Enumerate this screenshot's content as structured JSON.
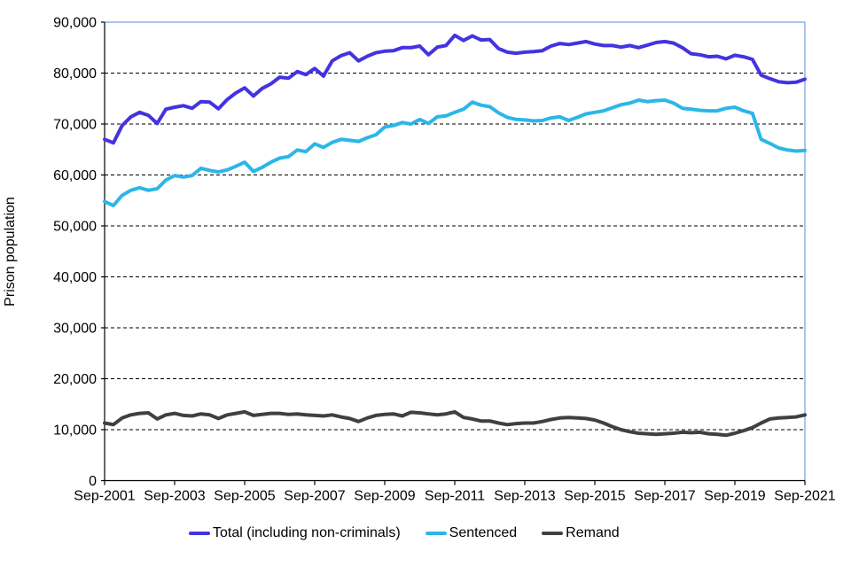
{
  "chart_data": {
    "type": "line",
    "title": "",
    "ylabel": "Prison population",
    "xlabel": "",
    "ylim": [
      0,
      90000
    ],
    "y_ticks": [
      0,
      10000,
      20000,
      30000,
      40000,
      50000,
      60000,
      70000,
      80000,
      90000
    ],
    "y_tick_labels": [
      "0",
      "10,000",
      "20,000",
      "30,000",
      "40,000",
      "50,000",
      "60,000",
      "70,000",
      "80,000",
      "90,000"
    ],
    "x_tick_labels": [
      "Sep-2001",
      "Sep-2003",
      "Sep-2005",
      "Sep-2007",
      "Sep-2009",
      "Sep-2011",
      "Sep-2013",
      "Sep-2015",
      "Sep-2017",
      "Sep-2019",
      "Sep-2021"
    ],
    "x_tick_indices": [
      0,
      8,
      16,
      24,
      32,
      40,
      48,
      56,
      64,
      72,
      80
    ],
    "x_start": "Sep-2001",
    "x_end": "Sep-2021",
    "x_frequency": "quarterly",
    "grid": "horizontal dashed black",
    "legend_position": "bottom",
    "plot_border_color": "#8DB4E2",
    "axis_color": "#000000",
    "series": [
      {
        "id": "total",
        "name": "Total (including non-criminals)",
        "color": "#4433E0",
        "values": [
          67000,
          66300,
          69700,
          71400,
          72300,
          71700,
          70100,
          72900,
          73300,
          73600,
          73100,
          74400,
          74300,
          73000,
          74800,
          76100,
          77100,
          75500,
          77000,
          77900,
          79200,
          79000,
          80300,
          79700,
          80900,
          79400,
          82400,
          83400,
          84000,
          82400,
          83300,
          84000,
          84300,
          84400,
          85000,
          85000,
          85300,
          83600,
          85100,
          85400,
          87400,
          86400,
          87300,
          86500,
          86600,
          84800,
          84100,
          83900,
          84100,
          84200,
          84400,
          85300,
          85800,
          85600,
          85900,
          86200,
          85700,
          85400,
          85400,
          85100,
          85400,
          85000,
          85500,
          86000,
          86200,
          85900,
          85000,
          83800,
          83600,
          83200,
          83300,
          82800,
          83500,
          83200,
          82700,
          79600,
          78900,
          78300,
          78100,
          78200,
          78800
        ]
      },
      {
        "id": "sentenced",
        "name": "Sentenced",
        "color": "#2CB6E8",
        "values": [
          54800,
          54000,
          56000,
          57000,
          57500,
          57000,
          57300,
          59000,
          59900,
          59600,
          59900,
          61300,
          60900,
          60600,
          61000,
          61700,
          62500,
          60700,
          61500,
          62500,
          63300,
          63600,
          64900,
          64600,
          66100,
          65400,
          66400,
          67000,
          66800,
          66600,
          67300,
          67900,
          69400,
          69700,
          70300,
          70000,
          70900,
          70100,
          71400,
          71600,
          72300,
          72900,
          74300,
          73700,
          73400,
          72200,
          71300,
          70900,
          70800,
          70600,
          70700,
          71200,
          71400,
          70700,
          71300,
          72000,
          72300,
          72600,
          73200,
          73800,
          74100,
          74700,
          74400,
          74600,
          74700,
          74100,
          73100,
          72900,
          72700,
          72600,
          72600,
          73100,
          73300,
          72600,
          72100,
          67000,
          66200,
          65300,
          64900,
          64700,
          64800
        ]
      },
      {
        "id": "remand",
        "name": "Remand",
        "color": "#404040",
        "values": [
          11300,
          11000,
          12300,
          12900,
          13200,
          13300,
          12100,
          12900,
          13200,
          12800,
          12700,
          13100,
          12900,
          12200,
          12900,
          13200,
          13500,
          12800,
          13000,
          13200,
          13200,
          13000,
          13100,
          12900,
          12800,
          12700,
          12900,
          12500,
          12200,
          11600,
          12300,
          12800,
          13000,
          13100,
          12700,
          13400,
          13300,
          13100,
          12900,
          13100,
          13500,
          12400,
          12100,
          11700,
          11700,
          11300,
          11000,
          11200,
          11300,
          11300,
          11600,
          12000,
          12300,
          12400,
          12300,
          12200,
          11900,
          11300,
          10600,
          10000,
          9600,
          9300,
          9200,
          9100,
          9200,
          9300,
          9500,
          9400,
          9500,
          9200,
          9100,
          8900,
          9300,
          9800,
          10400,
          11300,
          12100,
          12300,
          12400,
          12500,
          12900
        ]
      }
    ]
  }
}
